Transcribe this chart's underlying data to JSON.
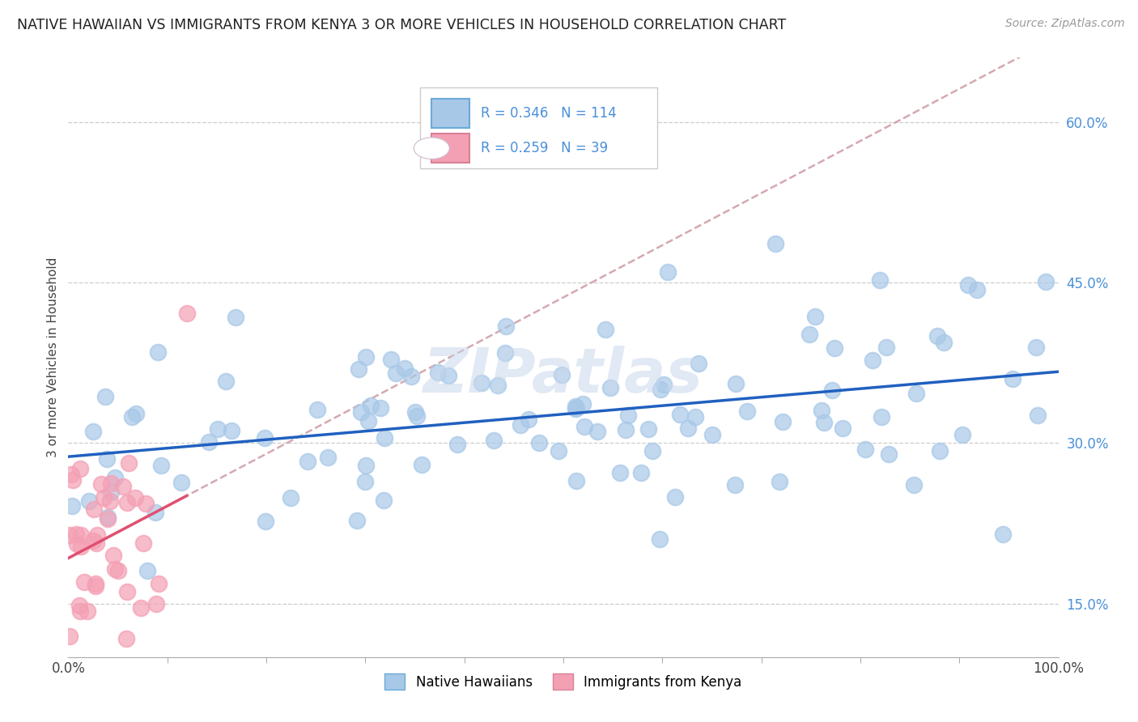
{
  "title": "NATIVE HAWAIIAN VS IMMIGRANTS FROM KENYA 3 OR MORE VEHICLES IN HOUSEHOLD CORRELATION CHART",
  "source": "Source: ZipAtlas.com",
  "ylabel": "3 or more Vehicles in Household",
  "legend_label1": "Native Hawaiians",
  "legend_label2": "Immigrants from Kenya",
  "R1": 0.346,
  "N1": 114,
  "R2": 0.259,
  "N2": 39,
  "color1": "#a8c8e8",
  "color2": "#f4a0b4",
  "line1_color": "#2060c0",
  "line2_color": "#e05070",
  "dashed_line_color": "#d0a0a8",
  "watermark": "ZIPatlas",
  "background_color": "#ffffff",
  "title_fontsize": 12.5,
  "ytick_vals": [
    0.15,
    0.3,
    0.45,
    0.6
  ],
  "xlim": [
    0.0,
    1.0
  ],
  "ylim": [
    0.1,
    0.66
  ]
}
